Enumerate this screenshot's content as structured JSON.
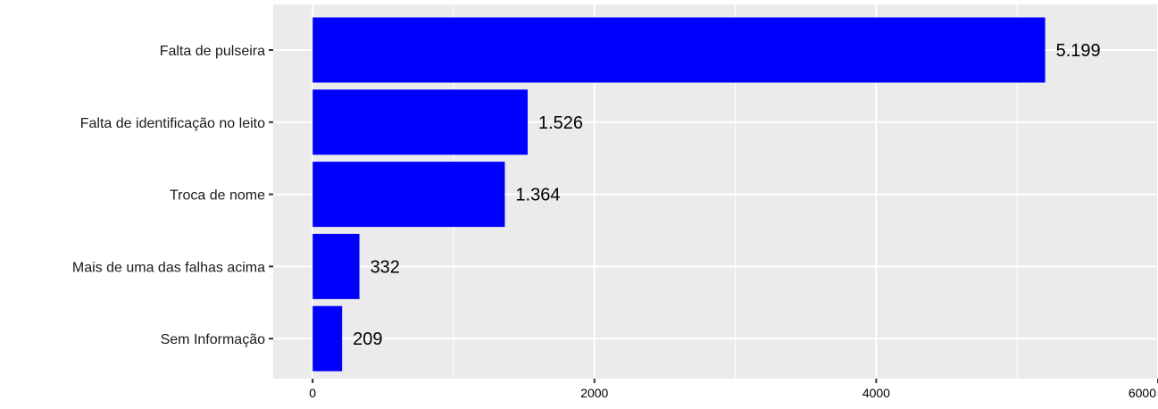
{
  "chart_data": {
    "type": "bar",
    "orientation": "horizontal",
    "title": "",
    "xlabel": "",
    "ylabel": "",
    "categories": [
      "Falta de pulseira",
      "Falta de identificação no leito",
      "Troca de nome",
      "Mais de uma das falhas acima",
      "Sem Informação"
    ],
    "values": [
      5199,
      1526,
      1364,
      332,
      209
    ],
    "value_labels": [
      "5.199",
      "1.526",
      "1.364",
      "332",
      "209"
    ],
    "xlim": [
      -280,
      6000
    ],
    "x_ticks": [
      0,
      2000,
      4000,
      6000
    ],
    "x_tick_labels": [
      "0",
      "2000",
      "4000",
      "6000"
    ],
    "grid": true,
    "legend": "none",
    "colors": {
      "bar": "#0000ff",
      "panel": "#ebebeb",
      "grid": "#ffffff"
    }
  }
}
